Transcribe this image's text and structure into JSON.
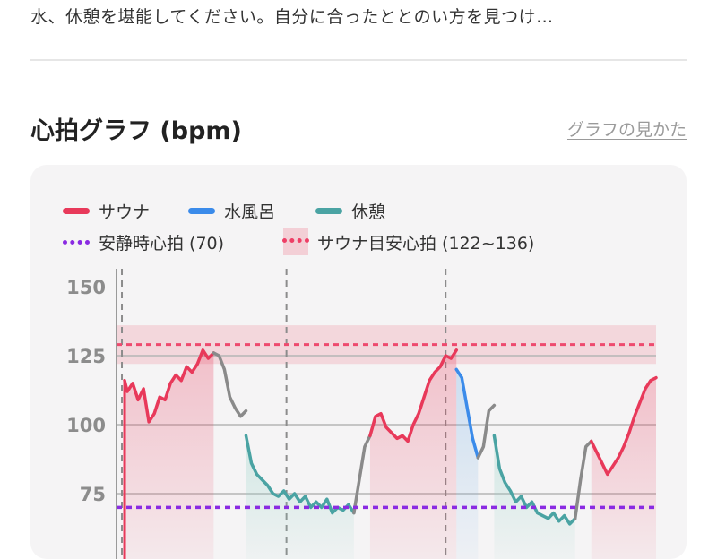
{
  "intro_text": "水、休憩を堪能してください。自分に合ったととのい方を見つけ…",
  "section": {
    "title": "心拍グラフ (bpm)",
    "guide_link": "グラフの見かた"
  },
  "colors": {
    "sauna": "#e8395a",
    "cold_bath": "#3b8bea",
    "rest": "#4aa3a3",
    "transition": "#8a8a8a",
    "resting_line": "#8a2be2",
    "target_line": "#ee4a6e",
    "target_band": "#f3cfd6"
  },
  "legend": {
    "sauna": "サウナ",
    "cold_bath": "水風呂",
    "rest": "休憩",
    "resting_hr": "安静時心拍 (70)",
    "target_hr": "サウナ目安心拍 (122~136)"
  },
  "chart_data": {
    "type": "line",
    "title": "心拍グラフ (bpm)",
    "y_ticks": [
      150,
      125,
      100,
      75
    ],
    "ylim": [
      60,
      150
    ],
    "resting_hr": 70,
    "target_range": [
      122,
      136
    ],
    "target_line": 129,
    "x_range": [
      0,
      100
    ],
    "set_boundaries": [
      1,
      31.5,
      61
    ],
    "series": [
      {
        "name": "サウナ",
        "phase": "sauna",
        "x": [
          1.5,
          2,
          3,
          4,
          5,
          6,
          7,
          8,
          9,
          10,
          11,
          12,
          13,
          14,
          15,
          16,
          17,
          18
        ],
        "y": [
          116,
          112,
          115,
          109,
          113,
          101,
          104,
          110,
          109,
          115,
          118,
          116,
          121,
          119,
          122,
          127,
          124,
          126
        ]
      },
      {
        "name": "",
        "phase": "transition",
        "x": [
          18,
          19,
          20,
          21,
          22
        ],
        "y": [
          126,
          125,
          120,
          110,
          106
        ]
      },
      {
        "name": "",
        "phase": "transition",
        "x": [
          22,
          23,
          24
        ],
        "y": [
          106,
          103,
          105
        ]
      },
      {
        "name": "休憩",
        "phase": "rest",
        "x": [
          24,
          25,
          26,
          27,
          28,
          29,
          30,
          31,
          32,
          33,
          34,
          35,
          36,
          37,
          38,
          39,
          40,
          41,
          42,
          43,
          44
        ],
        "y": [
          96,
          86,
          82,
          80,
          78,
          75,
          74,
          76,
          73,
          75,
          72,
          74,
          70,
          72,
          70,
          73,
          68,
          70,
          69,
          71,
          68
        ]
      },
      {
        "name": "",
        "phase": "transition",
        "x": [
          44,
          45,
          46,
          47
        ],
        "y": [
          68,
          80,
          92,
          96
        ]
      },
      {
        "name": "サウナ",
        "phase": "sauna",
        "x": [
          47,
          48,
          49,
          50,
          51,
          52,
          53,
          54,
          55,
          56,
          57,
          58,
          59,
          60,
          61,
          62,
          63
        ],
        "y": [
          96,
          103,
          104,
          99,
          97,
          95,
          96,
          94,
          100,
          104,
          110,
          116,
          119,
          121,
          125,
          124,
          127
        ]
      },
      {
        "name": "水風呂",
        "phase": "cold_bath",
        "x": [
          63,
          64,
          65,
          66,
          67
        ],
        "y": [
          120,
          117,
          106,
          95,
          88
        ]
      },
      {
        "name": "",
        "phase": "transition",
        "x": [
          67,
          68,
          69,
          70
        ],
        "y": [
          88,
          92,
          105,
          107
        ]
      },
      {
        "name": "休憩",
        "phase": "rest",
        "x": [
          70,
          71,
          72,
          73,
          74,
          75,
          76,
          77,
          78,
          79,
          80,
          81,
          82,
          83,
          84,
          85
        ],
        "y": [
          96,
          84,
          79,
          76,
          72,
          74,
          70,
          72,
          68,
          67,
          66,
          68,
          65,
          67,
          64,
          66
        ]
      },
      {
        "name": "",
        "phase": "transition",
        "x": [
          85,
          86,
          87,
          88
        ],
        "y": [
          66,
          80,
          92,
          94
        ]
      },
      {
        "name": "サウナ",
        "phase": "sauna",
        "x": [
          88,
          89,
          90,
          91,
          92,
          93,
          94,
          95,
          96,
          97,
          98,
          99,
          100
        ],
        "y": [
          94,
          90,
          86,
          82,
          85,
          88,
          92,
          97,
          103,
          108,
          113,
          116,
          117
        ]
      }
    ]
  }
}
